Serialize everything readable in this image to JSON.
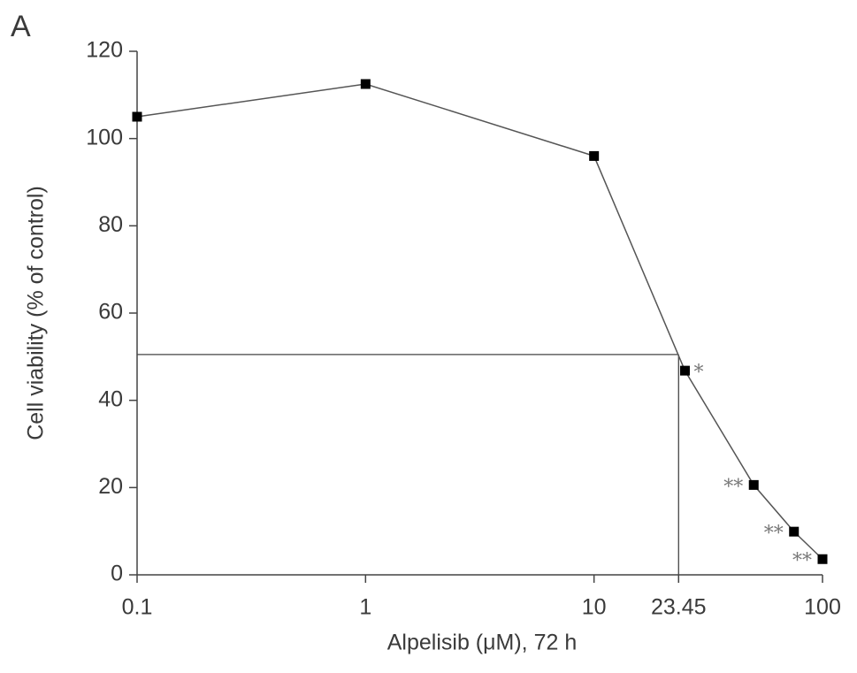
{
  "panel_label": "A",
  "chart_data": {
    "type": "line",
    "xscale": "log",
    "x": [
      0.1,
      1,
      10,
      25,
      50,
      75,
      100
    ],
    "series": [
      {
        "color": "#000000",
        "values": [
          105,
          112.5,
          96,
          46.8,
          20.6,
          9.9,
          3.6
        ],
        "value_labels": [
          null,
          null,
          null,
          "*",
          "**",
          "**",
          "**"
        ]
      }
    ],
    "xlabel": "Alpelisib (μM), 72 h",
    "ylabel": "Cell viability (% of control)",
    "xlim": [
      0.1,
      100
    ],
    "xticks": [
      0.1,
      1,
      10,
      23.45,
      100
    ],
    "ylim": [
      0,
      120
    ],
    "yticks": [
      0,
      20,
      40,
      60,
      80,
      100,
      120
    ],
    "reference": {
      "x": 23.45,
      "y": 50.5
    }
  }
}
